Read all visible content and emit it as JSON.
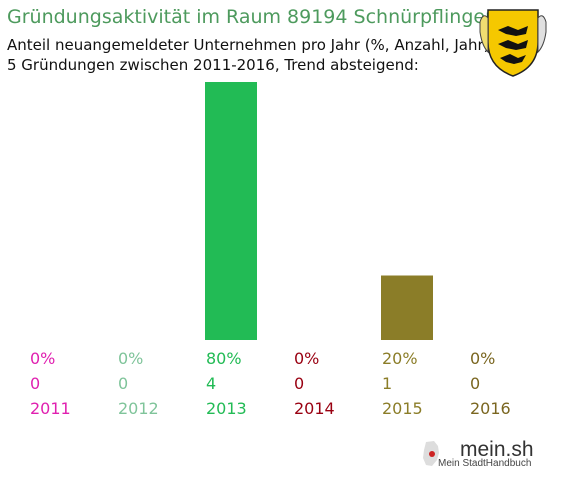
{
  "title": "Gründungsaktivität im Raum 89194 Schnürpflingen",
  "subtitle_line1": "Anteil neuangemeldeter Unternehmen pro Jahr (%, Anzahl, Jahr)",
  "subtitle_line2": "5 Gründungen zwischen 2011-2016, Trend absteigend:",
  "crest_icon": "baden-wuerttemberg-coat-of-arms",
  "logo": {
    "text": "mein.sh",
    "subtitle": "Mein StadtHandbuch",
    "icon": "germany-map-icon"
  },
  "chart_data": {
    "type": "bar",
    "categories": [
      "2011",
      "2012",
      "2013",
      "2014",
      "2015",
      "2016"
    ],
    "values": [
      0,
      0,
      80,
      0,
      20,
      0
    ],
    "counts": [
      0,
      0,
      4,
      0,
      1,
      0
    ],
    "percent_labels": [
      "0%",
      "0%",
      "80%",
      "0%",
      "20%",
      "0%"
    ],
    "colors": [
      "#e020b0",
      "#7fc49a",
      "#22bb55",
      "#990011",
      "#8b7d28",
      "#7a6620"
    ],
    "ylim": [
      0,
      80
    ],
    "grid": false
  }
}
